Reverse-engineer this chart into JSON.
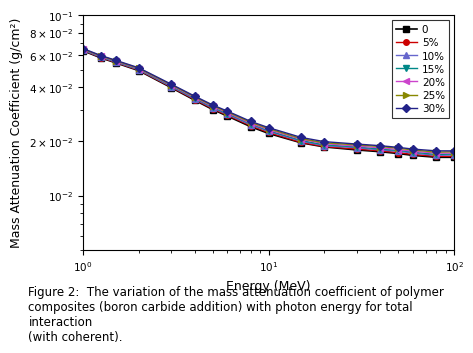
{
  "title": "",
  "xlabel": "Energy (MeV)",
  "ylabel": "Mass Attenuation Coefficient (g/cm²)",
  "caption": "Figure 2:  The variation of the mass attenuation coefficient of polymer\ncomposites (boron carbide addition) with photon energy for total interaction\n(with coherent).",
  "xmin": 1.0,
  "xmax": 100.0,
  "ymin": 0.005,
  "ymax": 0.1,
  "series": [
    {
      "label": "0",
      "color": "#000000",
      "marker": "s",
      "markersize": 4,
      "linestyle": "-",
      "linewidth": 1.2
    },
    {
      "label": "5%",
      "color": "#cc0000",
      "marker": "o",
      "markersize": 4,
      "linestyle": "-",
      "linewidth": 1.0
    },
    {
      "label": "10%",
      "color": "#6666cc",
      "marker": "^",
      "markersize": 4,
      "linestyle": "-",
      "linewidth": 1.0
    },
    {
      "label": "15%",
      "color": "#008888",
      "marker": "v",
      "markersize": 4,
      "linestyle": "-",
      "linewidth": 1.0
    },
    {
      "label": "20%",
      "color": "#cc44cc",
      "marker": "<",
      "markersize": 4,
      "linestyle": "-",
      "linewidth": 1.0
    },
    {
      "label": "25%",
      "color": "#888800",
      "marker": ">",
      "markersize": 4,
      "linestyle": "-",
      "linewidth": 1.0
    },
    {
      "label": "30%",
      "color": "#222288",
      "marker": "D",
      "markersize": 4,
      "linestyle": "-",
      "linewidth": 1.0
    }
  ],
  "energy_points": [
    1.0,
    1.25,
    1.5,
    2.0,
    3.0,
    4.0,
    5.0,
    6.0,
    8.0,
    10.0,
    15.0,
    20.0,
    30.0,
    40.0,
    50.0,
    60.0,
    80.0,
    100.0
  ],
  "mu_data": {
    "0": [
      0.0636,
      0.058,
      0.0545,
      0.0493,
      0.0396,
      0.0338,
      0.03,
      0.0276,
      0.0241,
      0.0221,
      0.0196,
      0.0186,
      0.0179,
      0.0175,
      0.0171,
      0.0167,
      0.0163,
      0.0163
    ],
    "5%": [
      0.064,
      0.0583,
      0.0548,
      0.0496,
      0.0399,
      0.0341,
      0.0303,
      0.0279,
      0.0244,
      0.0224,
      0.0197,
      0.0187,
      0.0181,
      0.0177,
      0.0173,
      0.0169,
      0.0165,
      0.0165
    ],
    "10%": [
      0.0643,
      0.0586,
      0.0551,
      0.0499,
      0.0402,
      0.0344,
      0.0306,
      0.0282,
      0.0247,
      0.0227,
      0.02,
      0.0189,
      0.0184,
      0.0179,
      0.0176,
      0.0172,
      0.0167,
      0.0168
    ],
    "15%": [
      0.0645,
      0.0589,
      0.0554,
      0.0502,
      0.0405,
      0.0347,
      0.0309,
      0.0285,
      0.025,
      0.0229,
      0.0202,
      0.0191,
      0.0186,
      0.0181,
      0.0178,
      0.0174,
      0.0169,
      0.017
    ],
    "20%": [
      0.0648,
      0.0592,
      0.0557,
      0.0505,
      0.0408,
      0.035,
      0.0312,
      0.0288,
      0.0252,
      0.0232,
      0.0205,
      0.0194,
      0.0188,
      0.0184,
      0.018,
      0.0176,
      0.0172,
      0.0172
    ],
    "25%": [
      0.0651,
      0.0595,
      0.056,
      0.0508,
      0.0411,
      0.0353,
      0.0315,
      0.0291,
      0.0255,
      0.0235,
      0.0207,
      0.0196,
      0.0191,
      0.0187,
      0.0183,
      0.0179,
      0.0174,
      0.0175
    ],
    "30%": [
      0.0654,
      0.0598,
      0.0563,
      0.0511,
      0.0414,
      0.0356,
      0.0318,
      0.0294,
      0.0258,
      0.0238,
      0.021,
      0.0199,
      0.0193,
      0.0189,
      0.0185,
      0.0181,
      0.0177,
      0.0177
    ]
  },
  "legend_box_color": "#ff6666",
  "background_color": "#ffffff",
  "font_size_axis": 9,
  "font_size_caption": 8.5
}
